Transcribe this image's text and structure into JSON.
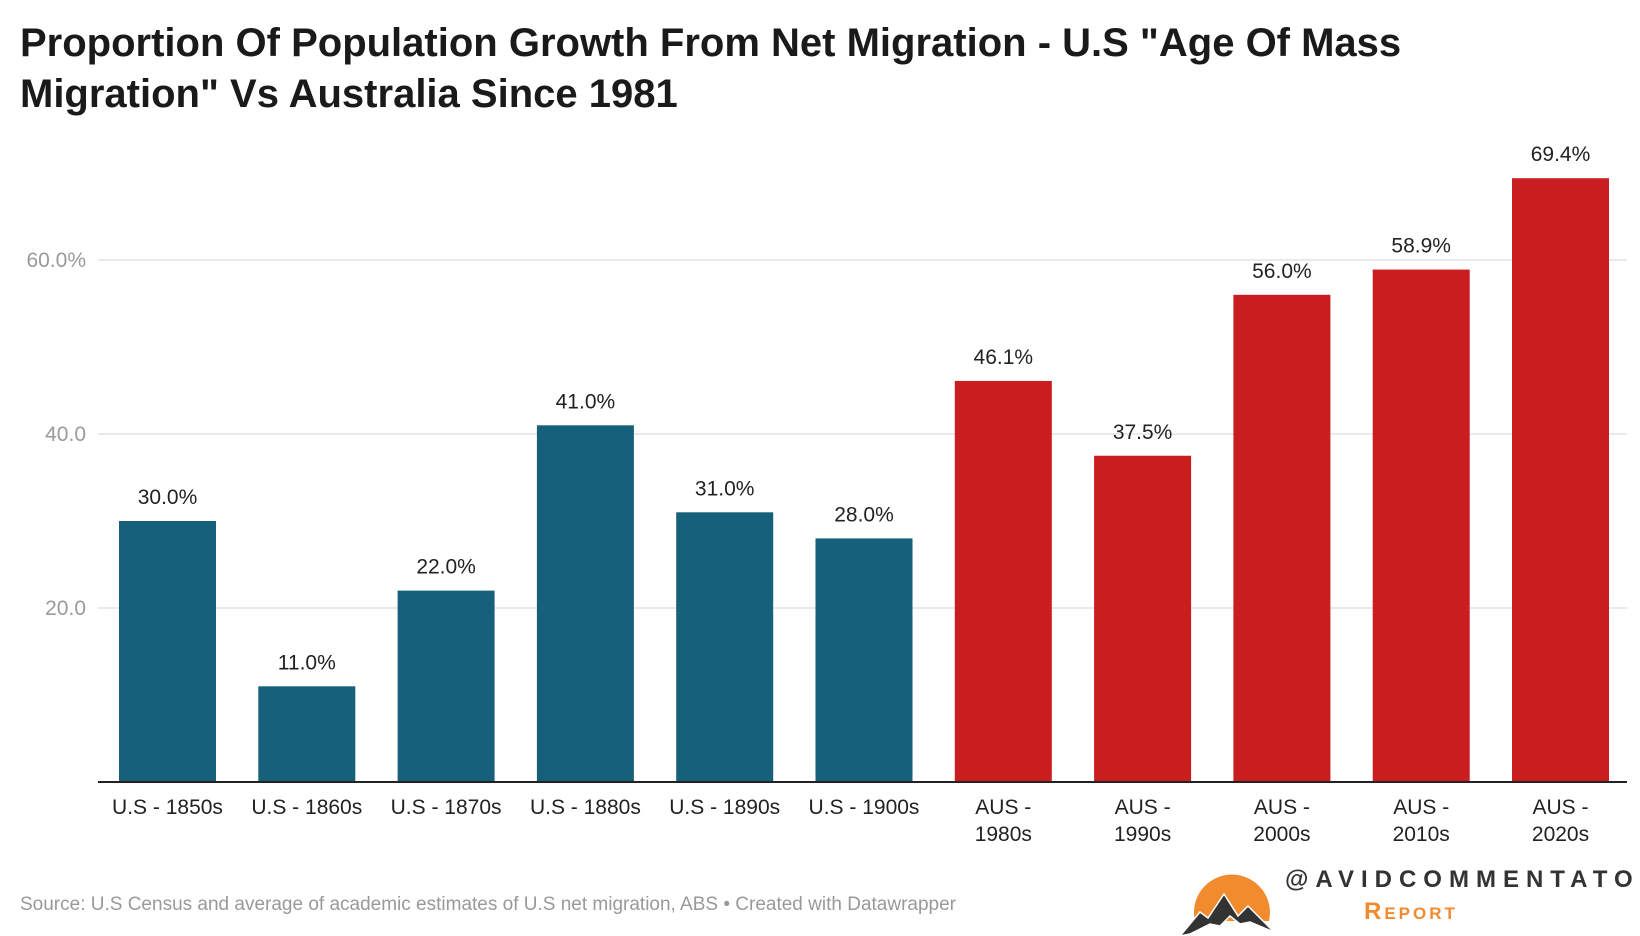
{
  "chart_data": {
    "type": "bar",
    "title": "Proportion Of Population Growth From Net Migration - U.S \"Age Of Mass Migration\" Vs Australia Since 1981",
    "categories": [
      "U.S - 1850s",
      "U.S - 1860s",
      "U.S - 1870s",
      "U.S - 1880s",
      "U.S - 1890s",
      "U.S - 1900s",
      "AUS - 1980s",
      "AUS - 1990s",
      "AUS - 2000s",
      "AUS - 2010s",
      "AUS - 2020s"
    ],
    "values": [
      30.0,
      11.0,
      22.0,
      41.0,
      31.0,
      28.0,
      46.1,
      37.5,
      56.0,
      58.9,
      69.4
    ],
    "data_labels": [
      "30.0%",
      "11.0%",
      "22.0%",
      "41.0%",
      "31.0%",
      "28.0%",
      "46.1%",
      "37.5%",
      "56.0%",
      "58.9%",
      "69.4%"
    ],
    "groups": [
      "US",
      "US",
      "US",
      "US",
      "US",
      "US",
      "AUS",
      "AUS",
      "AUS",
      "AUS",
      "AUS"
    ],
    "colors": {
      "US": "#17607a",
      "AUS": "#c91d1f"
    },
    "yticks": [
      20,
      40,
      60
    ],
    "ytick_labels": [
      "20.0",
      "40.0",
      "60.0%"
    ],
    "ylim": [
      0,
      70
    ],
    "xlabel": "",
    "ylabel": "",
    "grid": true
  },
  "footer": {
    "source": "Source: U.S Census and average of academic estimates of U.S net migration, ABS • Created with Datawrapper"
  },
  "logo": {
    "handle": "@AVIDCOMMENTATOR",
    "subtitle": "Report"
  }
}
